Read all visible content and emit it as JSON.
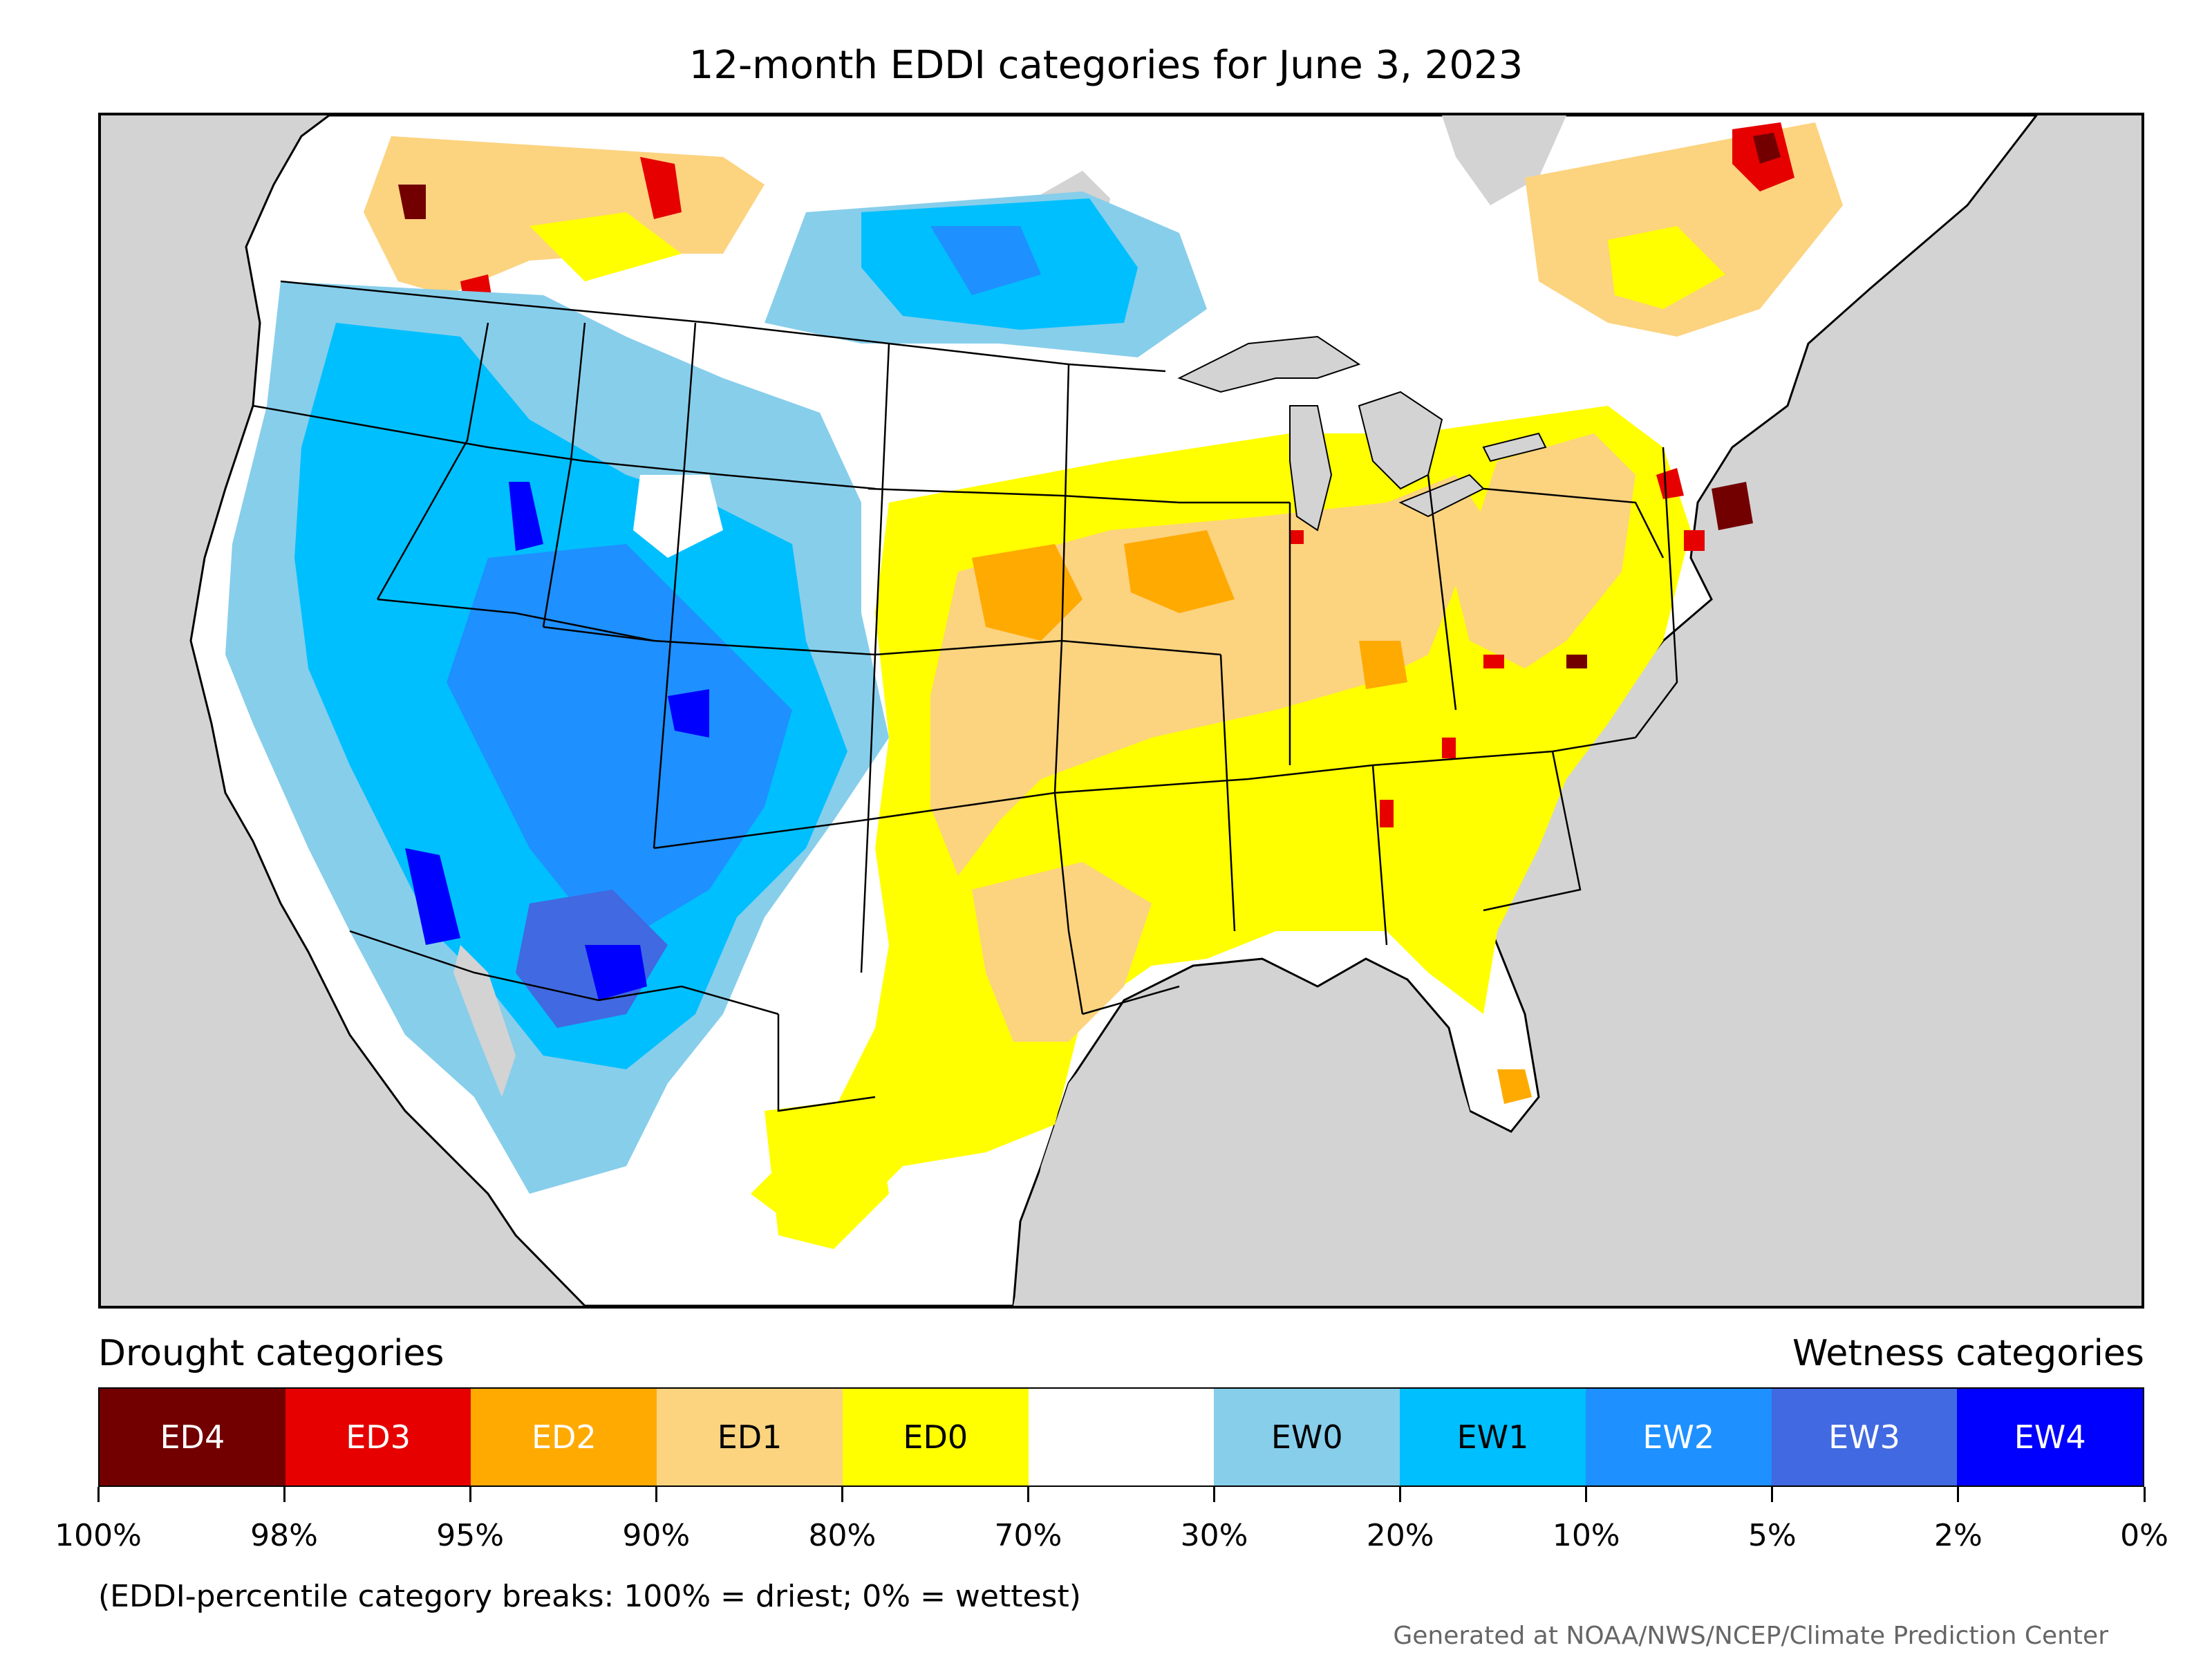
{
  "title": "12-month EDDI categories for June 3, 2023",
  "colors": {
    "ocean": "#d3d3d3",
    "ED4": "#730000",
    "ED3": "#e60000",
    "ED2": "#ffaa00",
    "ED1": "#fcd37f",
    "ED0": "#ffff00",
    "neutral": "#ffffff",
    "EW0": "#87ceeb",
    "EW1": "#00bfff",
    "EW2": "#1e90ff",
    "EW3": "#4169e1",
    "EW4": "#0000ff"
  },
  "legend": {
    "drought_heading": "Drought categories",
    "wetness_heading": "Wetness categories",
    "categories": [
      {
        "label": "ED4",
        "color": "#730000",
        "text_color": "#ffffff"
      },
      {
        "label": "ED3",
        "color": "#e60000",
        "text_color": "#ffffff"
      },
      {
        "label": "ED2",
        "color": "#ffaa00",
        "text_color": "#ffffff"
      },
      {
        "label": "ED1",
        "color": "#fcd37f",
        "text_color": "#000000"
      },
      {
        "label": "ED0",
        "color": "#ffff00",
        "text_color": "#000000"
      },
      {
        "label": "",
        "color": "#ffffff",
        "text_color": "#000000"
      },
      {
        "label": "EW0",
        "color": "#87ceeb",
        "text_color": "#000000"
      },
      {
        "label": "EW1",
        "color": "#00bfff",
        "text_color": "#000000"
      },
      {
        "label": "EW2",
        "color": "#1e90ff",
        "text_color": "#ffffff"
      },
      {
        "label": "EW3",
        "color": "#4169e1",
        "text_color": "#ffffff"
      },
      {
        "label": "EW4",
        "color": "#0000ff",
        "text_color": "#ffffff"
      }
    ],
    "ticks": [
      "100%",
      "98%",
      "95%",
      "90%",
      "80%",
      "70%",
      "30%",
      "20%",
      "10%",
      "5%",
      "2%",
      "0%"
    ]
  },
  "note": "(EDDI-percentile category breaks: 100% = driest; 0% = wettest)",
  "credit": "Generated at NOAA/NWS/NCEP/Climate Prediction Center"
}
